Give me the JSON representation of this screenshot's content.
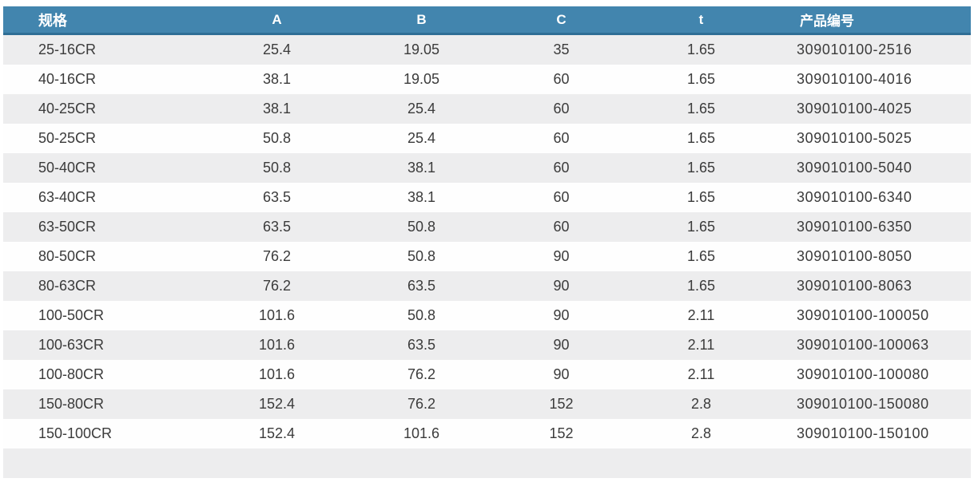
{
  "table": {
    "columns": [
      "规格",
      "A",
      "B",
      "C",
      "t",
      "产品编号"
    ],
    "rows": [
      [
        "25-16CR",
        "25.4",
        "19.05",
        "35",
        "1.65",
        "309010100-2516"
      ],
      [
        "40-16CR",
        "38.1",
        "19.05",
        "60",
        "1.65",
        "309010100-4016"
      ],
      [
        "40-25CR",
        "38.1",
        "25.4",
        "60",
        "1.65",
        "309010100-4025"
      ],
      [
        "50-25CR",
        "50.8",
        "25.4",
        "60",
        "1.65",
        "309010100-5025"
      ],
      [
        "50-40CR",
        "50.8",
        "38.1",
        "60",
        "1.65",
        "309010100-5040"
      ],
      [
        "63-40CR",
        "63.5",
        "38.1",
        "60",
        "1.65",
        "309010100-6340"
      ],
      [
        "63-50CR",
        "63.5",
        "50.8",
        "60",
        "1.65",
        "309010100-6350"
      ],
      [
        "80-50CR",
        "76.2",
        "50.8",
        "90",
        "1.65",
        "309010100-8050"
      ],
      [
        "80-63CR",
        "76.2",
        "63.5",
        "90",
        "1.65",
        "309010100-8063"
      ],
      [
        "100-50CR",
        "101.6",
        "50.8",
        "90",
        "2.11",
        "309010100-100050"
      ],
      [
        "100-63CR",
        "101.6",
        "63.5",
        "90",
        "2.11",
        "309010100-100063"
      ],
      [
        "100-80CR",
        "101.6",
        "76.2",
        "90",
        "2.11",
        "309010100-100080"
      ],
      [
        "150-80CR",
        "152.4",
        "76.2",
        "152",
        "2.8",
        "309010100-150080"
      ],
      [
        "150-100CR",
        "152.4",
        "101.6",
        "152",
        "2.8",
        "309010100-150100"
      ]
    ]
  },
  "colors": {
    "header_bg": "#4285ae",
    "header_text": "#ffffff",
    "header_border": "#2f6e95",
    "header_underline": "#b7cfde",
    "row_stripe": "#ededee",
    "row_white": "#fefefe",
    "cell_text": "#3b3b3b"
  }
}
